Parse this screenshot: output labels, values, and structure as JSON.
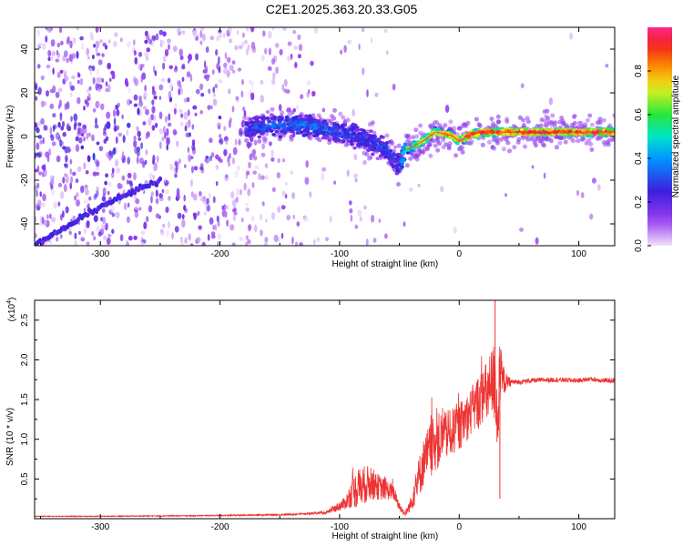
{
  "title": "C2E1.2025.363.20.33.G05",
  "chart_data": [
    {
      "type": "heatmap",
      "name": "spectrogram",
      "xlabel": "Height of straight line (km)",
      "ylabel": "Frequency (Hz)",
      "xlim": [
        -355,
        130
      ],
      "ylim": [
        -50,
        50
      ],
      "xticks": [
        -300,
        -200,
        -100,
        0,
        100
      ],
      "xtick_labels": [
        "-300",
        "-200",
        "-100",
        "0",
        "100"
      ],
      "yticks": [
        -40,
        -20,
        0,
        20,
        40
      ],
      "ytick_labels": [
        "-40",
        "-20",
        "0",
        "20",
        "40"
      ],
      "colorbar": {
        "label": "Normalized spectral amplitude",
        "range": [
          0,
          1
        ],
        "ticks": [
          0.0,
          0.2,
          0.4,
          0.6,
          0.8
        ],
        "tick_labels": [
          "0.0",
          "0.2",
          "0.4",
          "0.6",
          "0.8"
        ]
      },
      "main_trace": {
        "x": [
          -175,
          -150,
          -125,
          -100,
          -90,
          -80,
          -70,
          -60,
          -55,
          -50,
          -45,
          -40,
          -30,
          -20,
          -10,
          -5,
          0,
          10,
          20,
          40,
          60,
          80,
          100,
          130
        ],
        "y": [
          4,
          5,
          5,
          2,
          1,
          -1,
          -3,
          -6,
          -10,
          -14,
          -6,
          -5,
          -2,
          2,
          1,
          0,
          -2,
          1,
          2,
          2,
          2,
          2,
          2,
          2
        ],
        "amplitude": [
          0.3,
          0.35,
          0.35,
          0.3,
          0.3,
          0.3,
          0.3,
          0.3,
          0.3,
          0.3,
          0.6,
          0.7,
          0.75,
          0.8,
          0.85,
          0.85,
          0.9,
          0.95,
          0.95,
          0.95,
          0.95,
          0.95,
          0.95,
          0.95
        ]
      },
      "diagonal_feature": {
        "x": [
          -355,
          -300,
          -250
        ],
        "y": [
          -50,
          -32,
          -20
        ]
      }
    },
    {
      "type": "line",
      "name": "snr",
      "xlabel": "Height of straight line (km)",
      "ylabel": "SNR (10 * v/v)",
      "scale_label": "(x10",
      "scale_exp": "4",
      "scale_close": ")",
      "xlim": [
        -355,
        130
      ],
      "ylim": [
        0,
        2.75
      ],
      "xticks": [
        -300,
        -200,
        -100,
        0,
        100
      ],
      "xtick_labels": [
        "-300",
        "-200",
        "-100",
        "0",
        "100"
      ],
      "yticks": [
        0.5,
        1.0,
        1.5,
        2.0,
        2.5
      ],
      "ytick_labels": [
        "0.5",
        "1.0",
        "1.5",
        "2.0",
        "2.5"
      ],
      "color": "#ee3333",
      "envelope": {
        "x": [
          -355,
          -300,
          -250,
          -200,
          -150,
          -130,
          -110,
          -95,
          -90,
          -85,
          -80,
          -75,
          -70,
          -65,
          -60,
          -55,
          -50,
          -45,
          -40,
          -35,
          -30,
          -25,
          -20,
          -15,
          -10,
          -5,
          0,
          5,
          10,
          15,
          20,
          25,
          30,
          32,
          34,
          36,
          40,
          45,
          50,
          60,
          80,
          100,
          110,
          120,
          130
        ],
        "y": [
          0.03,
          0.03,
          0.035,
          0.04,
          0.05,
          0.06,
          0.08,
          0.2,
          0.32,
          0.38,
          0.42,
          0.45,
          0.42,
          0.38,
          0.36,
          0.33,
          0.15,
          0.06,
          0.2,
          0.45,
          0.7,
          0.85,
          0.95,
          1.0,
          1.05,
          1.1,
          1.15,
          1.25,
          1.35,
          1.45,
          1.55,
          1.6,
          1.75,
          1.2,
          1.8,
          1.75,
          1.72,
          1.72,
          1.72,
          1.74,
          1.75,
          1.74,
          1.76,
          1.74,
          1.74
        ],
        "noise": [
          0.005,
          0.005,
          0.006,
          0.007,
          0.01,
          0.012,
          0.02,
          0.08,
          0.18,
          0.25,
          0.25,
          0.22,
          0.18,
          0.15,
          0.12,
          0.1,
          0.06,
          0.03,
          0.1,
          0.25,
          0.3,
          0.35,
          0.35,
          0.35,
          0.3,
          0.3,
          0.3,
          0.3,
          0.3,
          0.35,
          0.35,
          0.45,
          0.55,
          0.5,
          0.45,
          0.25,
          0.08,
          0.04,
          0.03,
          0.03,
          0.03,
          0.03,
          0.03,
          0.03,
          0.03
        ]
      }
    }
  ]
}
